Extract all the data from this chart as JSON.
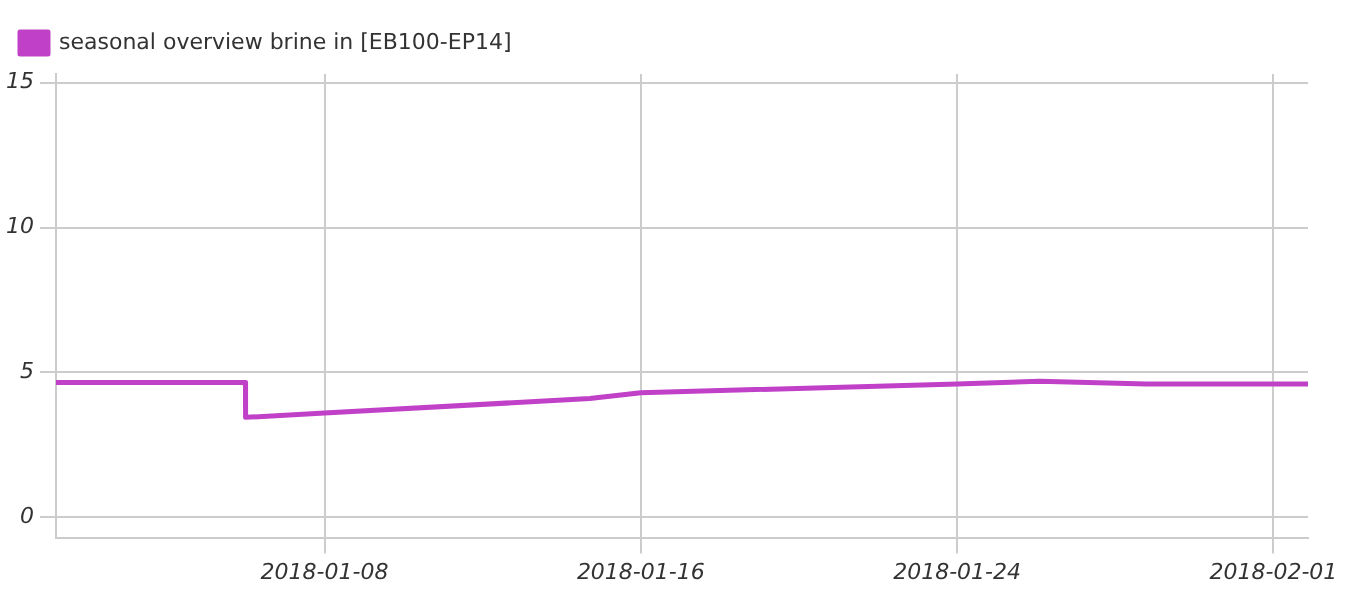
{
  "chart_data": {
    "type": "line",
    "x": [
      "2018-01-01T05:00",
      "2018-01-06T00:00",
      "2018-01-06T00:05",
      "2018-01-08T00:00",
      "2018-01-14T17:00",
      "2018-01-16T00:00",
      "2018-01-24T00:00",
      "2018-01-26T02:00",
      "2018-01-28T19:00",
      "2018-02-01T21:00"
    ],
    "series": [
      {
        "name": "seasonal overview brine in [EB100-EP14]",
        "color": "#c040c8",
        "values": [
          4.65,
          4.65,
          3.45,
          3.6,
          4.1,
          4.3,
          4.6,
          4.7,
          4.6,
          4.6
        ]
      }
    ],
    "xlim": [
      "2018-01-01T05:00",
      "2018-02-01T21:00"
    ],
    "xticks": [
      "2018-01-08",
      "2018-01-16",
      "2018-01-24",
      "2018-02-01"
    ],
    "ylim": [
      -0.7,
      15.3
    ],
    "yticks": [
      0,
      5,
      10,
      15
    ],
    "grid": true,
    "legend": "top left",
    "marker": "none",
    "line_style": "solid"
  }
}
